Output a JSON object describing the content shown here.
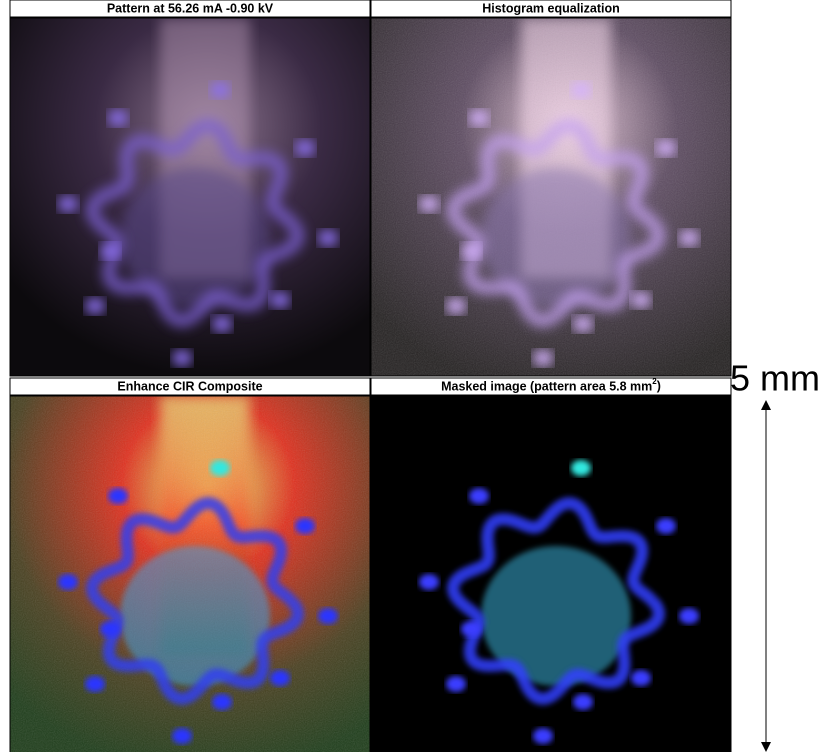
{
  "panels": [
    {
      "title": {
        "text": "Pattern at 56.26 mA -0.90 kV"
      }
    },
    {
      "title": {
        "text": "Histogram equalization"
      }
    },
    {
      "title": {
        "text": "Enhance CIR Composite"
      }
    },
    {
      "title": {
        "text": "Masked image (pattern area 5.8 mm",
        "superscript": "2",
        "suffix": ")"
      }
    }
  ],
  "scale_bar": {
    "label": "5 mm"
  }
}
